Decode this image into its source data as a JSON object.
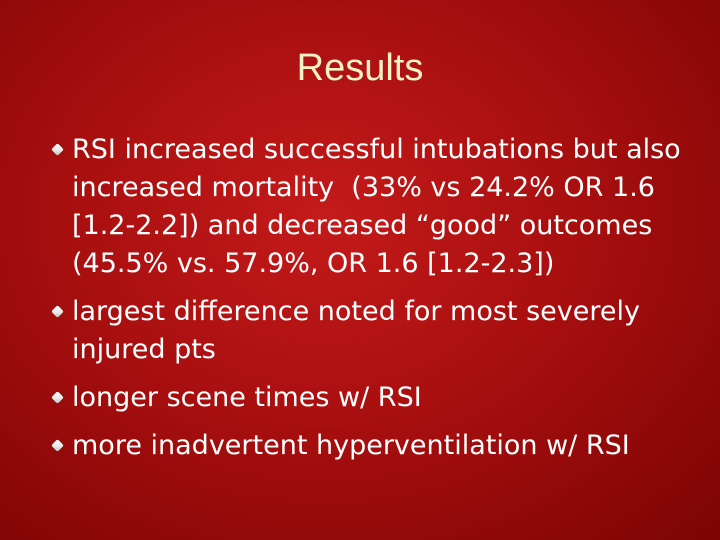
{
  "title": "Results",
  "bullets": [
    "RSI increased successful intubations but also increased mortality  (33% vs 24.2% OR 1.6 [1.2-2.2]) and decreased “good” outcomes (45.5% vs. 57.9%, OR 1.6 [1.2-2.3])",
    "largest difference noted for most severely injured pts",
    "longer scene times w/ RSI",
    "more inadvertent hyperventilation w/ RSI"
  ]
}
